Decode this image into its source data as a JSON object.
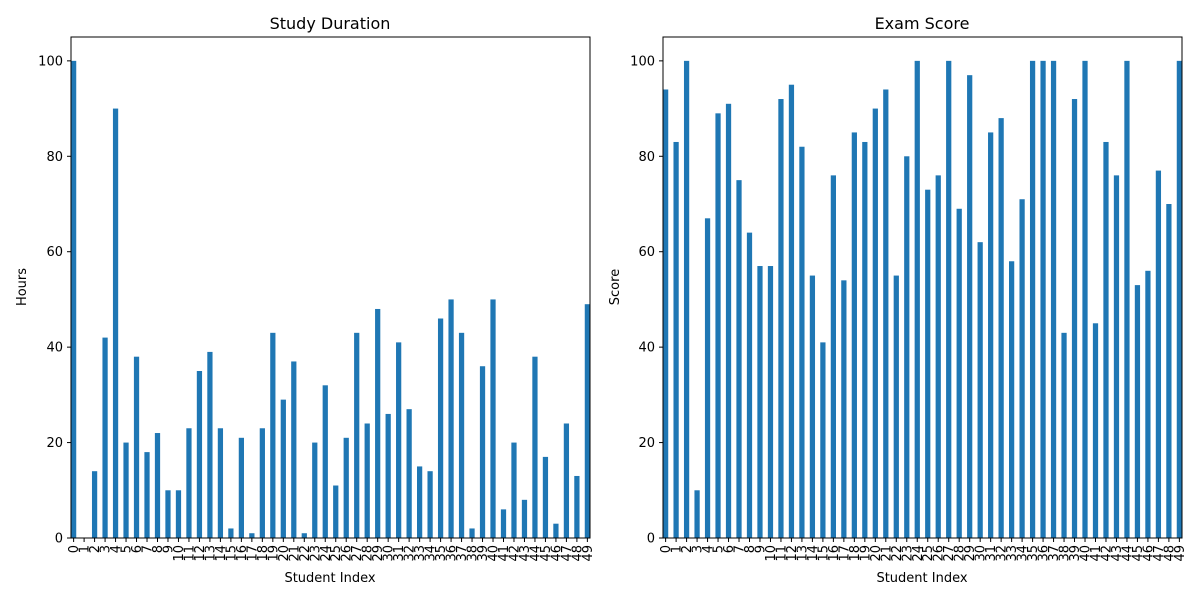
{
  "figure": {
    "background": "#ffffff",
    "bar_color": "#1f77b4"
  },
  "chart_data": [
    {
      "type": "bar",
      "title": "Study Duration",
      "xlabel": "Student Index",
      "ylabel": "Hours",
      "categories": [
        "0",
        "1",
        "2",
        "3",
        "4",
        "5",
        "6",
        "7",
        "8",
        "9",
        "10",
        "11",
        "12",
        "13",
        "14",
        "15",
        "16",
        "17",
        "18",
        "19",
        "20",
        "21",
        "22",
        "23",
        "24",
        "25",
        "26",
        "27",
        "28",
        "29",
        "30",
        "31",
        "32",
        "33",
        "34",
        "35",
        "36",
        "37",
        "38",
        "39",
        "40",
        "41",
        "42",
        "43",
        "44",
        "45",
        "46",
        "47",
        "48",
        "49"
      ],
      "values": [
        100,
        0,
        14,
        42,
        90,
        20,
        38,
        18,
        22,
        10,
        10,
        23,
        35,
        39,
        23,
        2,
        21,
        1,
        23,
        43,
        29,
        37,
        1,
        20,
        32,
        11,
        21,
        43,
        24,
        48,
        26,
        41,
        27,
        15,
        14,
        46,
        50,
        43,
        2,
        36,
        50,
        6,
        20,
        8,
        38,
        17,
        3,
        24,
        13,
        49
      ],
      "yticks": [
        0,
        20,
        40,
        60,
        80,
        100
      ],
      "ylim": [
        0,
        105
      ],
      "grid": false,
      "legend": false
    },
    {
      "type": "bar",
      "title": "Exam Score",
      "xlabel": "Student Index",
      "ylabel": "Score",
      "categories": [
        "0",
        "1",
        "2",
        "3",
        "4",
        "5",
        "6",
        "7",
        "8",
        "9",
        "10",
        "11",
        "12",
        "13",
        "14",
        "15",
        "16",
        "17",
        "18",
        "19",
        "20",
        "21",
        "22",
        "23",
        "24",
        "25",
        "26",
        "27",
        "28",
        "29",
        "30",
        "31",
        "32",
        "33",
        "34",
        "35",
        "36",
        "37",
        "38",
        "39",
        "40",
        "41",
        "42",
        "43",
        "44",
        "45",
        "46",
        "47",
        "48",
        "49"
      ],
      "values": [
        94,
        83,
        100,
        10,
        67,
        89,
        91,
        75,
        64,
        57,
        57,
        92,
        95,
        82,
        55,
        41,
        76,
        54,
        85,
        83,
        90,
        94,
        55,
        80,
        100,
        73,
        76,
        100,
        69,
        97,
        62,
        85,
        88,
        58,
        71,
        100,
        100,
        100,
        43,
        92,
        100,
        45,
        83,
        76,
        100,
        53,
        56,
        77,
        70,
        100
      ],
      "yticks": [
        0,
        20,
        40,
        60,
        80,
        100
      ],
      "ylim": [
        0,
        105
      ],
      "grid": false,
      "legend": false
    }
  ]
}
